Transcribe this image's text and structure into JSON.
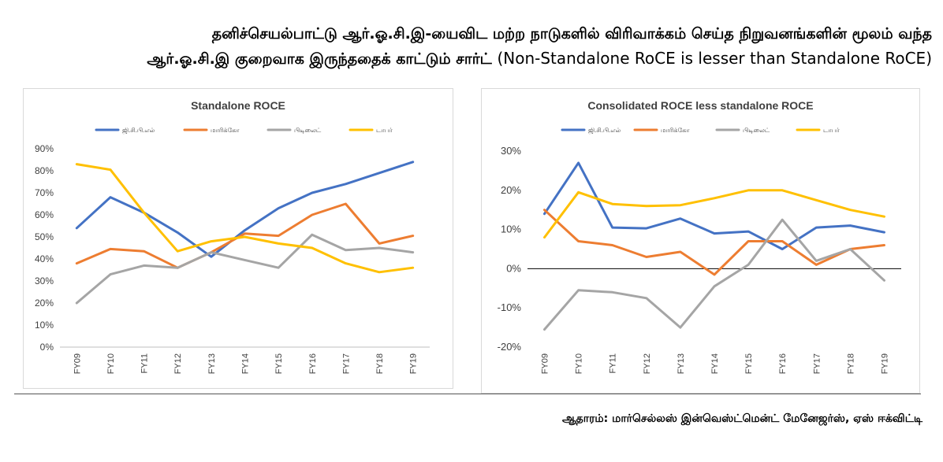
{
  "header": {
    "title_line1": "தனிச்செயல்பாட்டு ஆர்.ஓ.சி.இ-யைவிட மற்ற நாடுகளில் விரிவாக்கம் செய்த நிறுவனங்களின் மூலம் வந்த",
    "title_line2_tamil": "ஆர்.ஓ.சி.இ குறைவாக இருந்ததைக் காட்டும் சார்ட்",
    "title_line2_english": "(Non-Standalone RoCE is lesser than Standalone RoCE)"
  },
  "footer": {
    "source": "ஆதாரம்: மார்செல்லஸ் இன்வெஸ்ட்மென்ட் மேனேஜர்ஸ், ஏஸ் ஈக்விட்டி"
  },
  "chart_data": [
    {
      "type": "line",
      "title": "Standalone ROCE",
      "xlabel": "",
      "ylabel": "",
      "categories": [
        "FY09",
        "FY10",
        "FY11",
        "FY12",
        "FY13",
        "FY14",
        "FY15",
        "FY16",
        "FY17",
        "FY18",
        "FY19"
      ],
      "ylim": [
        0,
        90
      ],
      "yticks": [
        0,
        10,
        20,
        30,
        40,
        50,
        60,
        70,
        80,
        90
      ],
      "ytick_labels": [
        "0%",
        "10%",
        "20%",
        "30%",
        "40%",
        "50%",
        "60%",
        "70%",
        "80%",
        "90%"
      ],
      "grid": false,
      "legend_position": "top",
      "series": [
        {
          "name": "ஜி.சி.பி.எல்",
          "color": "#4472C4",
          "values": [
            54,
            68,
            61,
            52,
            41,
            53,
            63,
            70,
            74,
            79,
            84
          ]
        },
        {
          "name": "மாரிக்கோ",
          "color": "#ED7D31",
          "values": [
            38,
            44.5,
            43.5,
            36,
            43,
            51.5,
            50.5,
            60,
            65,
            47,
            50.5
          ]
        },
        {
          "name": "பிடிலைட்",
          "color": "#A5A5A5",
          "values": [
            20,
            33,
            37,
            36,
            43,
            39.5,
            36,
            51,
            44,
            45,
            43
          ]
        },
        {
          "name": "டாபர்",
          "color": "#FFC000",
          "values": [
            83,
            80.5,
            61,
            43.5,
            48,
            50,
            47,
            45,
            38,
            34,
            36
          ]
        }
      ]
    },
    {
      "type": "line",
      "title": "Consolidated ROCE less standalone ROCE",
      "xlabel": "",
      "ylabel": "",
      "categories": [
        "FY09",
        "FY10",
        "FY11",
        "FY12",
        "FY13",
        "FY14",
        "FY15",
        "FY16",
        "FY17",
        "FY18",
        "FY19"
      ],
      "ylim": [
        -20,
        30
      ],
      "yticks": [
        -20,
        -10,
        0,
        10,
        20,
        30
      ],
      "ytick_labels": [
        "-20%",
        "-10%",
        "0%",
        "10%",
        "20%",
        "30%"
      ],
      "grid": false,
      "legend_position": "top",
      "series": [
        {
          "name": "ஜி.சி.பி.எல்",
          "color": "#4472C4",
          "values": [
            14,
            27,
            10.5,
            10.3,
            12.8,
            9,
            9.5,
            5,
            10.5,
            11,
            9.3
          ]
        },
        {
          "name": "மாரிக்கோ",
          "color": "#ED7D31",
          "values": [
            15,
            7,
            6,
            3,
            4.3,
            -1.5,
            7,
            7,
            1,
            5,
            6
          ]
        },
        {
          "name": "பிடிலைட்",
          "color": "#A5A5A5",
          "values": [
            -15.5,
            -5.5,
            -6,
            -7.5,
            -15,
            -4.5,
            1,
            12.5,
            2,
            5,
            -3
          ]
        },
        {
          "name": "டாபர்",
          "color": "#FFC000",
          "values": [
            8,
            19.5,
            16.5,
            16,
            16.2,
            18,
            20,
            20,
            17.5,
            15,
            13.3
          ]
        }
      ]
    }
  ]
}
